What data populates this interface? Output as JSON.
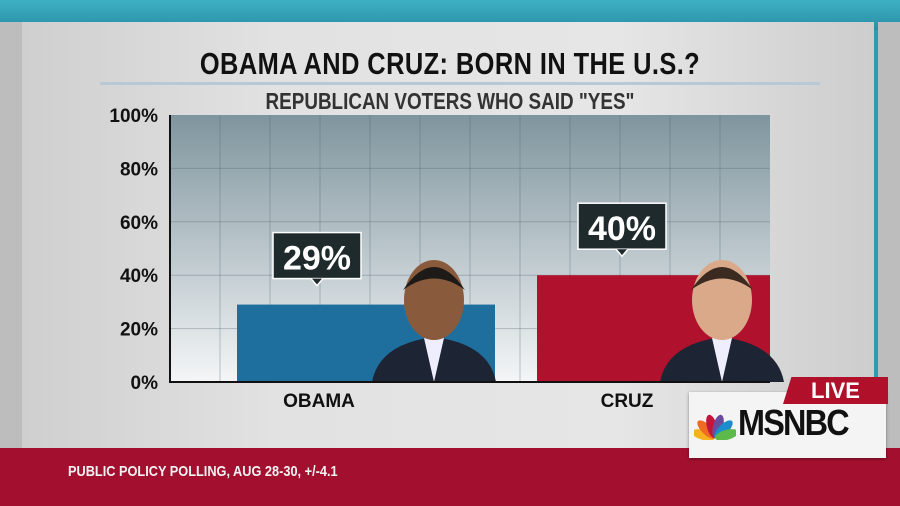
{
  "chart_data": {
    "type": "bar",
    "title": "OBAMA AND CRUZ: BORN IN THE U.S.?",
    "subtitle": "REPUBLICAN VOTERS WHO SAID \"YES\"",
    "categories": [
      "OBAMA",
      "CRUZ"
    ],
    "values": [
      29,
      40
    ],
    "data_labels": [
      "29%",
      "40%"
    ],
    "colors": [
      "#1f6f9e",
      "#b0122e"
    ],
    "ylim": [
      0,
      100
    ],
    "yticks": [
      "0%",
      "20%",
      "40%",
      "60%",
      "80%",
      "100%"
    ],
    "grid": true,
    "xlabel": "",
    "ylabel": ""
  },
  "footer": {
    "source": "PUBLIC POLICY POLLING, AUG 28-30, +/-4.1"
  },
  "branding": {
    "live": "LIVE",
    "network": "MSNBC"
  }
}
